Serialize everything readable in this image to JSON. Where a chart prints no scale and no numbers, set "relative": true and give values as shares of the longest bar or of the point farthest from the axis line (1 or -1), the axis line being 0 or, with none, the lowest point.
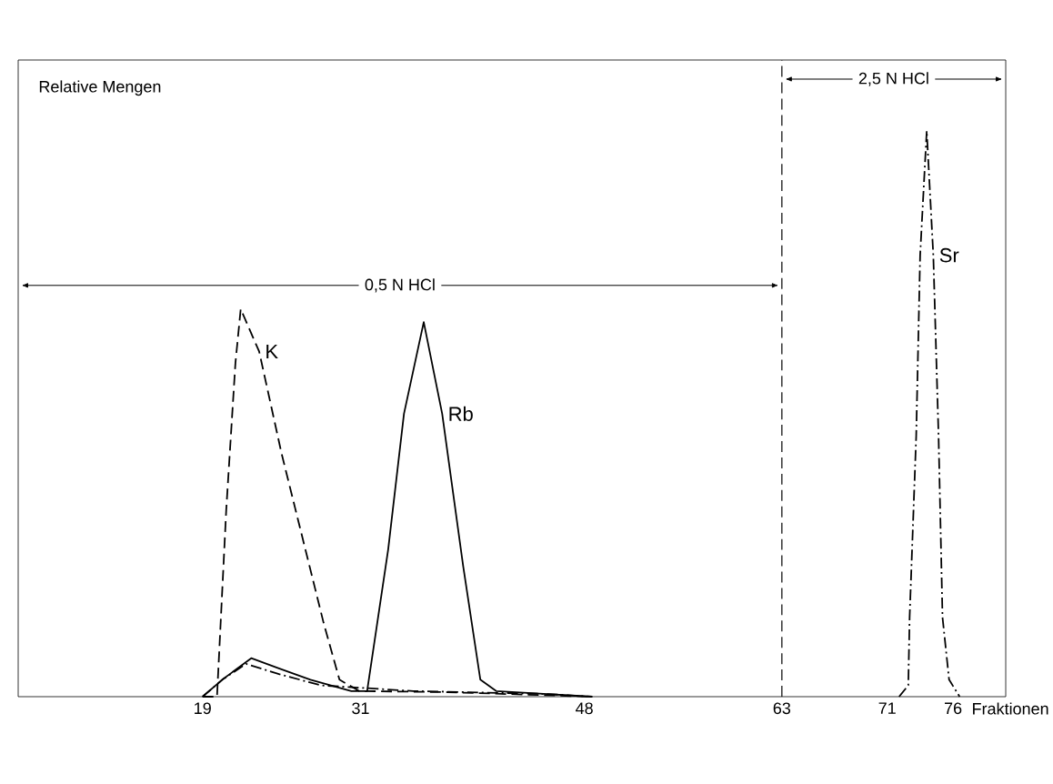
{
  "chart_data": {
    "type": "line",
    "relative": true,
    "ylabel": "Relative Mengen",
    "xlabel": "Fraktionen",
    "xlim": [
      5,
      80
    ],
    "xticks": [
      19,
      31,
      48,
      63,
      71,
      76
    ],
    "tick_labels": "x",
    "series": [
      {
        "name": "K",
        "color": "#000000",
        "line_style": "dashed",
        "x": [
          19,
          20.1,
          20.8,
          21.5,
          21.9,
          23.3,
          25.0,
          26.6,
          28.2,
          29.4,
          30.9,
          37.6,
          48.6
        ],
        "values": [
          0,
          0,
          0.33,
          0.59,
          0.685,
          0.61,
          0.43,
          0.28,
          0.13,
          0.03,
          0.01,
          0.008,
          0
        ]
      },
      {
        "name": "Rb",
        "color": "#000000",
        "line_style": "solid",
        "x": [
          19,
          20.5,
          22.7,
          24.8,
          27.2,
          30.3,
          31.5,
          33.1,
          34.3,
          35.8,
          37.2,
          38.8,
          40.1,
          41.3,
          48.6
        ],
        "values": [
          0,
          0.03,
          0.068,
          0.05,
          0.03,
          0.01,
          0.01,
          0.26,
          0.5,
          0.662,
          0.5,
          0.23,
          0.03,
          0.01,
          0
        ]
      },
      {
        "name": "Sr",
        "color": "#000000",
        "line_style": "dashdot",
        "x": [
          19,
          20.5,
          22.3,
          24.8,
          28,
          35,
          45,
          48.6,
          null,
          71.9,
          72.6,
          72.7,
          73.2,
          73.5,
          74.0,
          74.5,
          74.9,
          75.2,
          75.7,
          76.5
        ],
        "values": [
          0,
          0.03,
          0.058,
          0.04,
          0.02,
          0.01,
          0.005,
          0,
          null,
          0,
          0.02,
          0.14,
          0.46,
          0.78,
          1,
          0.78,
          0.46,
          0.14,
          0.03,
          0
        ]
      }
    ],
    "ref_lines": [
      {
        "axis": "x",
        "value": 63,
        "line_style": "dashed"
      }
    ],
    "annotations": [
      "0,5 N HCl",
      "2,5 N HCl"
    ]
  }
}
